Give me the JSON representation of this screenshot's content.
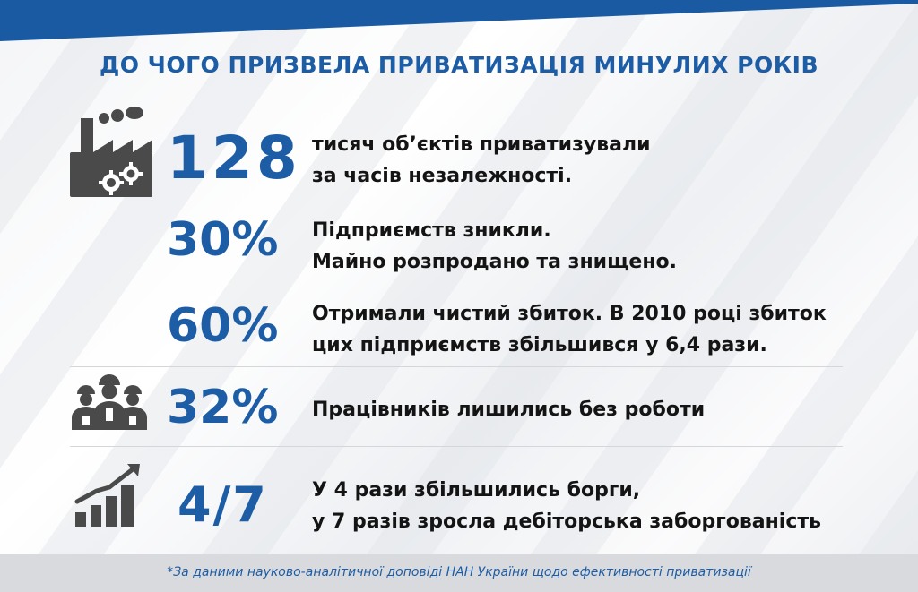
{
  "title": "ДО ЧОГО ПРИЗВЕЛА ПРИВАТИЗАЦІЯ МИНУЛИХ РОКІВ",
  "colors": {
    "accent": "#1d5da6",
    "text": "#141414",
    "icon": "#4a4a4a",
    "footer_bg": "#d8dadd"
  },
  "stats": [
    {
      "value": "128",
      "icon": "factory-icon",
      "lines": [
        "тисяч об’єктів приватизували",
        "за часів незалежності."
      ]
    },
    {
      "value": "30%",
      "icon": "",
      "lines": [
        "Підприємств зникли.",
        "Майно розпродано та знищено."
      ]
    },
    {
      "value": "60%",
      "icon": "",
      "lines": [
        "Отримали чистий збиток. В 2010 році збиток",
        "цих підприємств збільшився у 6,4 рази."
      ]
    },
    {
      "value": "32%",
      "icon": "workers-icon",
      "lines": [
        "Працівників лишились без роботи"
      ]
    },
    {
      "value": "4/7",
      "icon": "growth-chart-icon",
      "lines": [
        "У 4 рази збільшились борги,",
        "у 7 разів зросла дебіторська заборгованість"
      ]
    }
  ],
  "footnote": "*За даними науково-аналітичної доповіді НАН України щодо ефективності приватизації"
}
